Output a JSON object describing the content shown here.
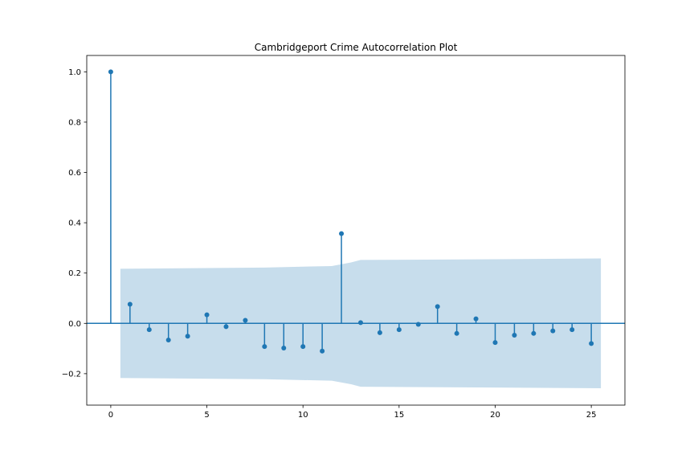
{
  "chart_data": {
    "type": "scatter",
    "title": "Cambridgeport Crime Autocorrelation Plot",
    "xlabel": "",
    "ylabel": "",
    "xlim": [
      -1.25,
      26.75
    ],
    "ylim": [
      -0.325,
      1.065
    ],
    "grid": false,
    "legend": "none",
    "x_ticks": [
      0,
      5,
      10,
      15,
      20,
      25
    ],
    "y_ticks": [
      -0.2,
      0.0,
      0.2,
      0.4,
      0.6,
      0.8,
      1.0
    ],
    "y_tick_labels": [
      "−0.2",
      "0.0",
      "0.2",
      "0.4",
      "0.6",
      "0.8",
      "1.0"
    ],
    "series": [
      {
        "lags": [
          0,
          1,
          2,
          3,
          4,
          5,
          6,
          7,
          8,
          9,
          10,
          11,
          12,
          13,
          14,
          15,
          16,
          17,
          18,
          19,
          20,
          21,
          22,
          23,
          24,
          25
        ],
        "acf": [
          1.0,
          0.076,
          -0.025,
          -0.066,
          -0.051,
          0.034,
          -0.013,
          0.012,
          -0.092,
          -0.098,
          -0.092,
          -0.11,
          0.357,
          0.003,
          -0.037,
          -0.025,
          -0.004,
          0.067,
          -0.04,
          0.018,
          -0.076,
          -0.047,
          -0.04,
          -0.03,
          -0.025,
          -0.08
        ]
      }
    ],
    "confidence_band": {
      "x": [
        0.5,
        8,
        11.5,
        12.5,
        13,
        20,
        25.5
      ],
      "upper": [
        0.217,
        0.222,
        0.228,
        0.242,
        0.252,
        0.255,
        0.258
      ],
      "lower": [
        -0.217,
        -0.222,
        -0.228,
        -0.242,
        -0.252,
        -0.255,
        -0.258
      ]
    },
    "colors": {
      "stem": "#1f77b4",
      "band": "#1f77b4",
      "band_opacity": 0.25
    }
  }
}
